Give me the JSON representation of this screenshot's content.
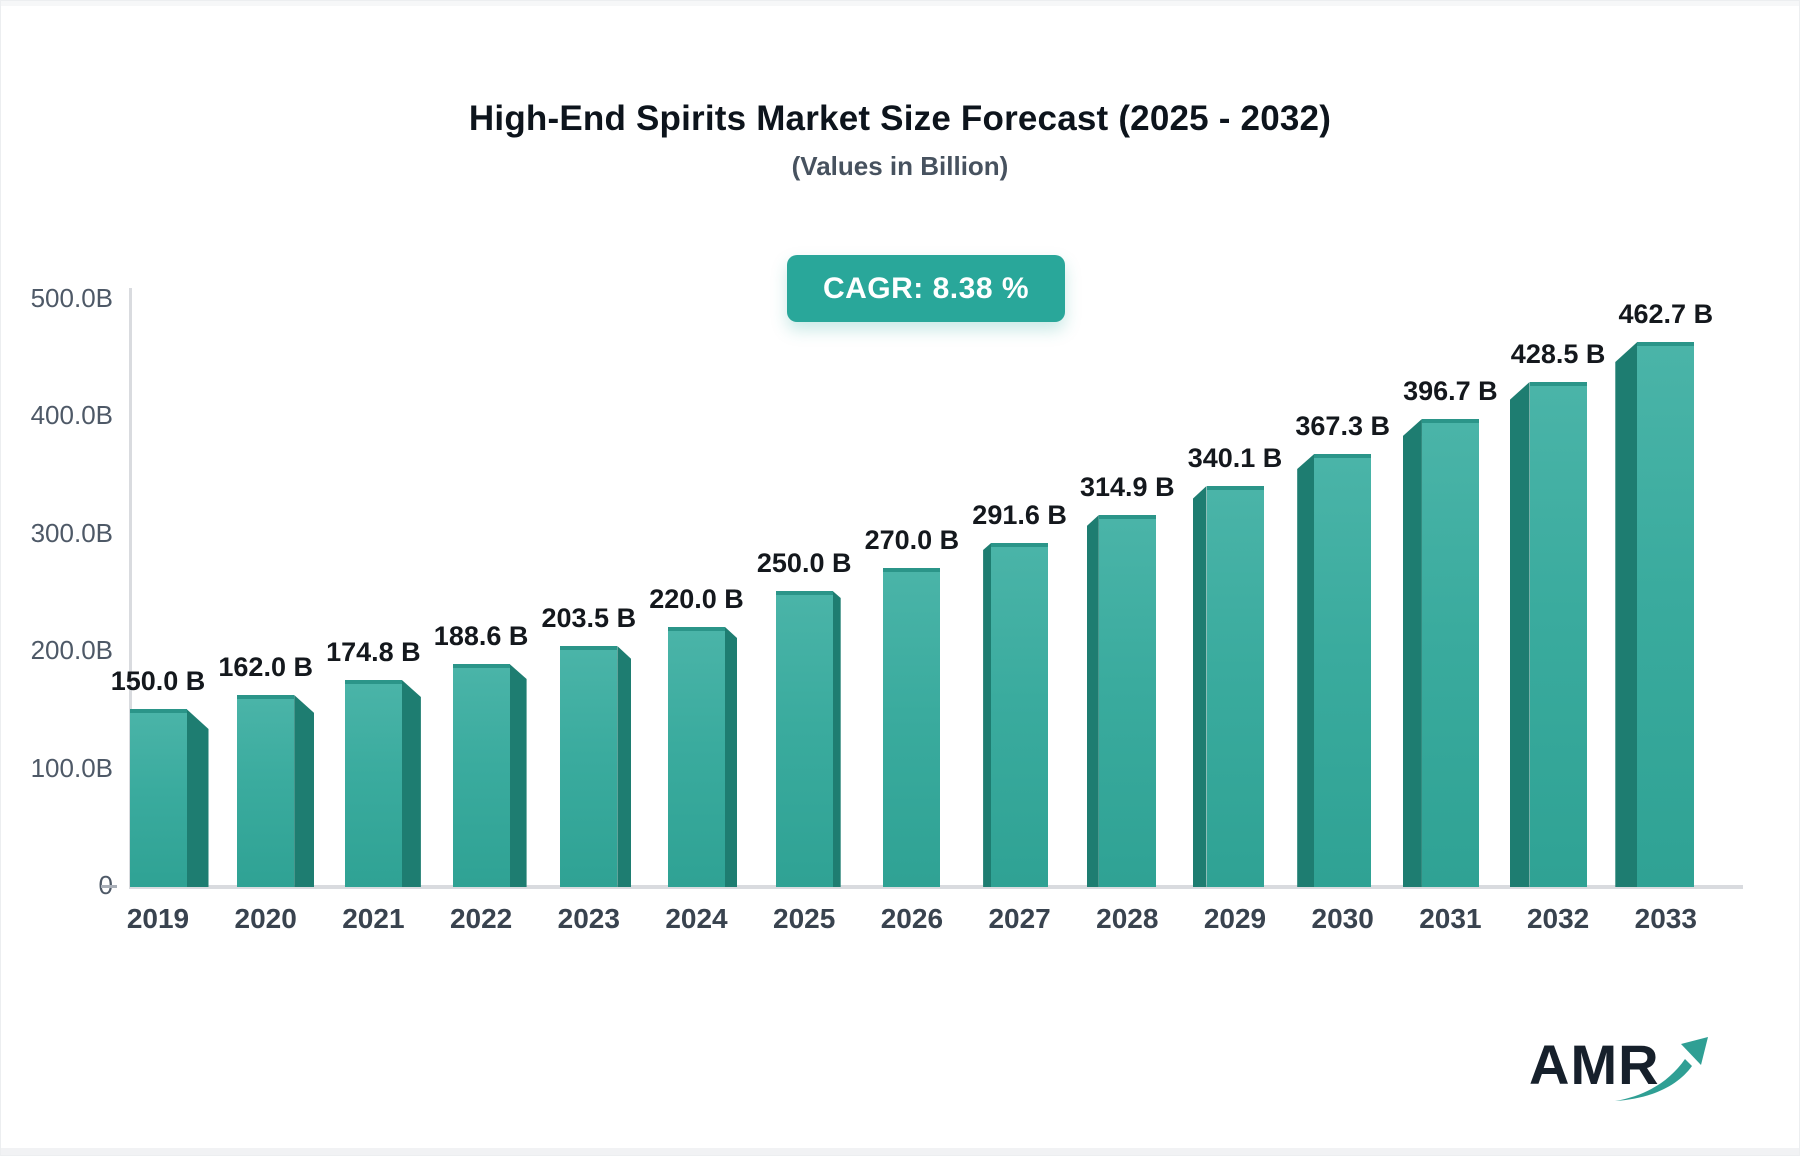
{
  "header": {
    "title": "High-End Spirits Market Size Forecast (2025 - 2032)",
    "subtitle": "(Values in Billion)",
    "cagr_label": "CAGR: 8.38 %"
  },
  "branding": {
    "logo_text": "AMR"
  },
  "colors": {
    "bar_face_top": "#4ab4a8",
    "bar_face_bottom": "#2fa294",
    "bar_side": "#1e7d71",
    "bar_top_edge": "#2b9589",
    "badge_background": "#29a79a",
    "badge_text": "#ffffff",
    "axis_line": "#d9dbdf",
    "axis_label": "#4e5967",
    "year_label": "#39434f",
    "value_label": "#14181d",
    "logo_text": "#16202b",
    "logo_arrow": "#2f9f94"
  },
  "chart_data": {
    "type": "bar",
    "title": "High-End Spirits Market Size Forecast (2025 - 2032)",
    "subtitle": "(Values in Billion)",
    "cagr_percent": 8.38,
    "unit": "Billion",
    "categories": [
      "2019",
      "2020",
      "2021",
      "2022",
      "2023",
      "2024",
      "2025",
      "2026",
      "2027",
      "2028",
      "2029",
      "2030",
      "2031",
      "2032",
      "2033"
    ],
    "values": [
      150.0,
      162.0,
      174.8,
      188.6,
      203.5,
      220.0,
      250.0,
      270.0,
      291.6,
      314.9,
      340.1,
      367.3,
      396.7,
      428.5,
      462.7
    ],
    "value_labels": [
      "150.0 B",
      "162.0 B",
      "174.8 B",
      "188.6 B",
      "203.5 B",
      "220.0 B",
      "250.0 B",
      "270.0 B",
      "291.6 B",
      "314.9 B",
      "340.1 B",
      "367.3 B",
      "396.7 B",
      "428.5 B",
      "462.7 B"
    ],
    "y_axis": {
      "range": [
        0,
        500
      ],
      "ticks": [
        {
          "value": 500,
          "label": "500.0B"
        },
        {
          "value": 400,
          "label": "400.0B"
        },
        {
          "value": 300,
          "label": "300.0B"
        },
        {
          "value": 200,
          "label": "200.0B"
        },
        {
          "value": 100,
          "label": "100.0B"
        },
        {
          "value": 0,
          "label": "0"
        }
      ]
    },
    "grid": false,
    "legend": false
  }
}
